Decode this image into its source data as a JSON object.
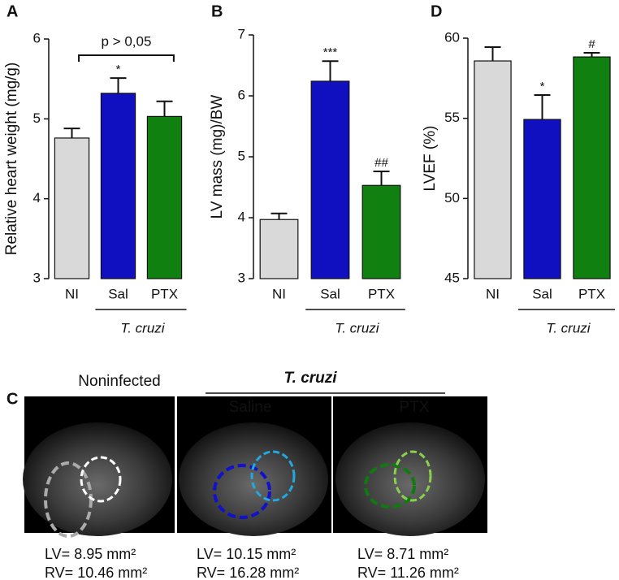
{
  "chart_data": [
    {
      "type": "bar",
      "panel": "A",
      "ylabel": "Relative heart weight (mg/g)",
      "categories": [
        "NI",
        "Sal",
        "PTX"
      ],
      "values": [
        4.76,
        5.32,
        5.03
      ],
      "errors": [
        0.12,
        0.19,
        0.19
      ],
      "colors": [
        "#d9d9d9",
        "#1010c0",
        "#108010"
      ],
      "annotations": [
        null,
        "*",
        null
      ],
      "bracket_label": "p > 0,05",
      "group_label": "T. cruzi",
      "ylim": [
        3,
        6
      ],
      "yticks": [
        3,
        4,
        5,
        6
      ]
    },
    {
      "type": "bar",
      "panel": "B",
      "ylabel": "LV mass (mg)/BW",
      "categories": [
        "NI",
        "Sal",
        "PTX"
      ],
      "values": [
        3.97,
        6.24,
        4.53
      ],
      "errors": [
        0.1,
        0.33,
        0.23
      ],
      "colors": [
        "#d9d9d9",
        "#1010c0",
        "#108010"
      ],
      "annotations": [
        null,
        "***",
        "##"
      ],
      "group_label": "T. cruzi",
      "ylim": [
        3,
        7
      ],
      "yticks": [
        3,
        4,
        5,
        6,
        7
      ]
    },
    {
      "type": "bar",
      "panel": "D",
      "ylabel": "LVEF (%)",
      "categories": [
        "NI",
        "Sal",
        "PTX"
      ],
      "values": [
        58.58,
        54.93,
        58.83
      ],
      "errors": [
        0.86,
        1.52,
        0.26
      ],
      "colors": [
        "#d9d9d9",
        "#1010c0",
        "#108010"
      ],
      "annotations": [
        null,
        "*",
        "#"
      ],
      "group_label": "T. cruzi",
      "ylim": [
        45,
        60
      ],
      "yticks": [
        45,
        50,
        55,
        60
      ]
    }
  ],
  "panel_c": {
    "label": "C",
    "group_label": "T. cruzi",
    "images": [
      {
        "title": "Noninfected",
        "lv": "LV= 8.95 mm²",
        "rv": "RV= 10.46 mm²"
      },
      {
        "title": "Saline",
        "lv": "LV= 10.15 mm²",
        "rv": "RV= 16.28 mm²"
      },
      {
        "title": "PTX",
        "lv": "LV= 8.71 mm²",
        "rv": "RV= 11.26 mm²"
      }
    ]
  }
}
